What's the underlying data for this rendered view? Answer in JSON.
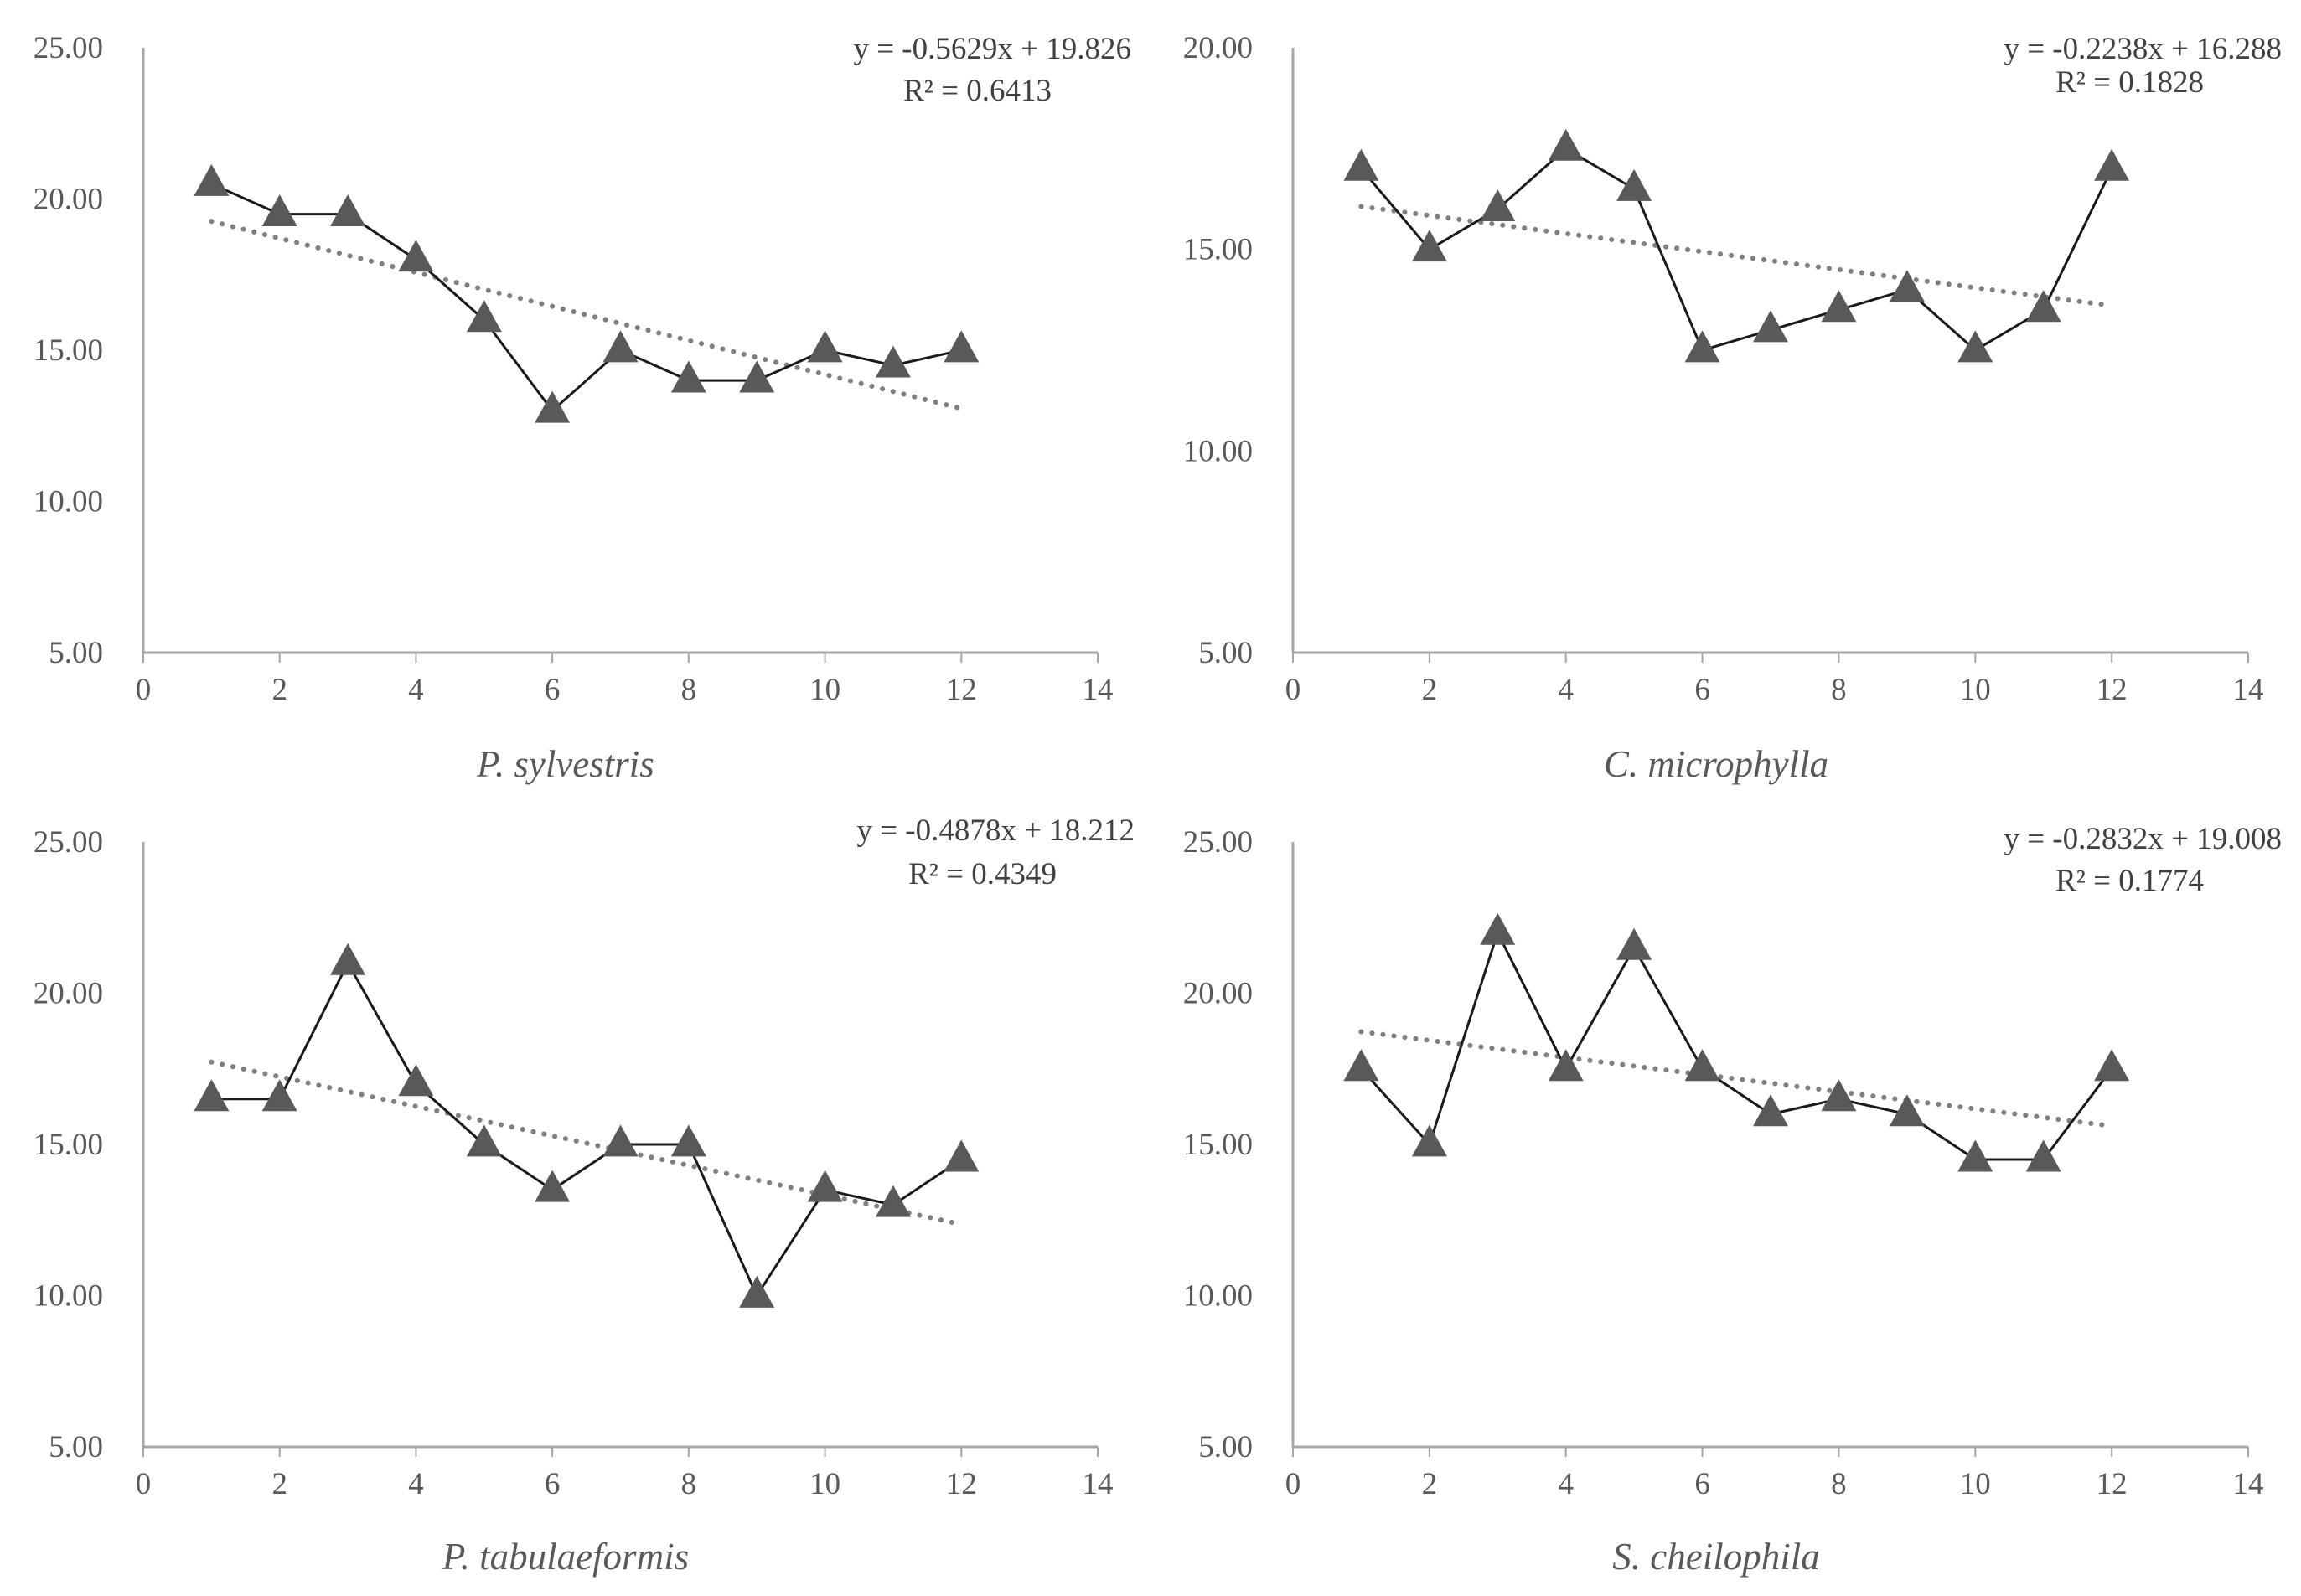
{
  "chart_data": [
    {
      "type": "line",
      "title": "P. sylvestris",
      "xlim": [
        0,
        14
      ],
      "ylim": [
        5,
        25
      ],
      "xticks": [
        0,
        2,
        4,
        6,
        8,
        10,
        12,
        14
      ],
      "xtick_labels": [
        "0",
        "2",
        "4",
        "6",
        "8",
        "10",
        "12",
        "14"
      ],
      "yticks": [
        5,
        10,
        15,
        20,
        25
      ],
      "ytick_labels": [
        "5.00",
        "10.00",
        "15.00",
        "20.00",
        "25.00"
      ],
      "x": [
        1,
        2,
        3,
        4,
        5,
        6,
        7,
        8,
        9,
        10,
        11,
        12
      ],
      "values": [
        20.5,
        19.5,
        19.5,
        18.0,
        16.0,
        13.0,
        15.0,
        14.0,
        14.0,
        15.0,
        14.5,
        15.0
      ],
      "trendline": {
        "slope": -0.5629,
        "intercept": 19.826,
        "x_range": [
          1,
          12
        ]
      },
      "equation": "y = -0.5629x + 19.826",
      "r_squared": "R² = 0.6413"
    },
    {
      "type": "line",
      "title": "C. microphylla",
      "xlim": [
        0,
        14
      ],
      "ylim": [
        5,
        20
      ],
      "xticks": [
        0,
        2,
        4,
        6,
        8,
        10,
        12,
        14
      ],
      "xtick_labels": [
        "0",
        "2",
        "4",
        "6",
        "8",
        "10",
        "12",
        "14"
      ],
      "yticks": [
        5,
        10,
        15,
        20
      ],
      "ytick_labels": [
        "5.00",
        "10.00",
        "15.00",
        "20.00"
      ],
      "x": [
        1,
        2,
        3,
        4,
        5,
        6,
        7,
        8,
        9,
        10,
        11,
        12
      ],
      "values": [
        17.0,
        15.0,
        16.0,
        17.5,
        16.5,
        12.5,
        13.0,
        13.5,
        14.0,
        12.5,
        13.5,
        17.0
      ],
      "trendline": {
        "slope": -0.2238,
        "intercept": 16.288,
        "x_range": [
          1,
          12
        ]
      },
      "equation": "y = -0.2238x + 16.288",
      "r_squared": "R² = 0.1828"
    },
    {
      "type": "line",
      "title": "P. tabulaeformis",
      "xlim": [
        0,
        14
      ],
      "ylim": [
        5,
        25
      ],
      "xticks": [
        0,
        2,
        4,
        6,
        8,
        10,
        12,
        14
      ],
      "xtick_labels": [
        "0",
        "2",
        "4",
        "6",
        "8",
        "10",
        "12",
        "14"
      ],
      "yticks": [
        5,
        10,
        15,
        20,
        25
      ],
      "ytick_labels": [
        "5.00",
        "10.00",
        "15.00",
        "20.00",
        "25.00"
      ],
      "x": [
        1,
        2,
        3,
        4,
        5,
        6,
        7,
        8,
        9,
        10,
        11,
        12
      ],
      "values": [
        16.5,
        16.5,
        21.0,
        17.0,
        15.0,
        13.5,
        15.0,
        15.0,
        10.0,
        13.5,
        13.0,
        14.5
      ],
      "trendline": {
        "slope": -0.4878,
        "intercept": 18.212,
        "x_range": [
          1,
          12
        ]
      },
      "equation": "y = -0.4878x + 18.212",
      "r_squared": "R² = 0.4349"
    },
    {
      "type": "line",
      "title": "S. cheilophila",
      "xlim": [
        0,
        14
      ],
      "ylim": [
        5,
        25
      ],
      "xticks": [
        0,
        2,
        4,
        6,
        8,
        10,
        12,
        14
      ],
      "xtick_labels": [
        "0",
        "2",
        "4",
        "6",
        "8",
        "10",
        "12",
        "14"
      ],
      "yticks": [
        5,
        10,
        15,
        20,
        25
      ],
      "ytick_labels": [
        "5.00",
        "10.00",
        "15.00",
        "20.00",
        "25.00"
      ],
      "x": [
        1,
        2,
        3,
        4,
        5,
        6,
        7,
        8,
        9,
        10,
        11,
        12
      ],
      "values": [
        17.5,
        15.0,
        22.0,
        17.5,
        21.5,
        17.5,
        16.0,
        16.5,
        16.0,
        14.5,
        14.5,
        17.5
      ],
      "trendline": {
        "slope": -0.2832,
        "intercept": 19.008,
        "x_range": [
          1,
          12
        ]
      },
      "equation": "y = -0.2832x + 19.008",
      "r_squared": "R² = 0.1774"
    }
  ],
  "colors": {
    "axis": "#a6a6a6",
    "series_line": "#1a1a1a",
    "marker_fill": "#595959",
    "trendline": "#808080"
  }
}
